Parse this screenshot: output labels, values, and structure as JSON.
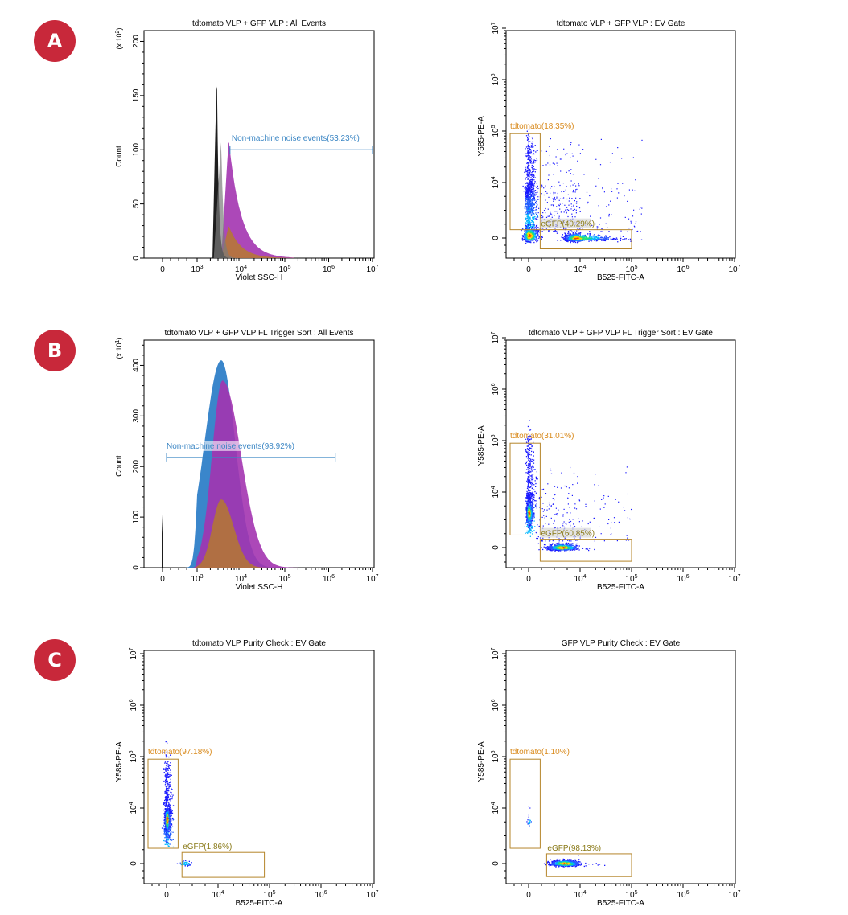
{
  "badges": [
    "A",
    "B",
    "C"
  ],
  "colors": {
    "badge": "#c8283a",
    "gate": "#b5852a",
    "histogram_marker": "#3b86c4",
    "tdtomato_label": "#d98a1c",
    "egfp_label": "#8a7a18"
  },
  "chart_data": [
    {
      "id": "A-left",
      "type": "histogram",
      "title": "tdtomato VLP + GFP VLP : All Events",
      "xlabel": "Violet SSC-H",
      "ylabel": "Count",
      "y_multiplier_label": "(x 10^2)",
      "x_scale": "biexponential",
      "x_ticks": [
        "0",
        "10^3",
        "10^4",
        "10^5",
        "10^6",
        "10^7"
      ],
      "y_ticks": [
        0,
        50,
        100,
        150,
        200
      ],
      "ylim": [
        0,
        210
      ],
      "marker": {
        "label": "Non-machine noise events(53.23%)",
        "start": "~5x10^3",
        "end": "10^7",
        "level": 100
      },
      "series": [
        {
          "color": "black",
          "peak_value": 176,
          "peak_x": "~3x10^3"
        },
        {
          "color": "purple",
          "peak_value": 110,
          "peak_x": "~5x10^3"
        },
        {
          "color": "orange",
          "peak_value": 30,
          "peak_x": "~5x10^3"
        }
      ]
    },
    {
      "id": "A-right",
      "type": "scatter",
      "title": "tdtomato VLP + GFP VLP : EV Gate",
      "xlabel": "B525-FITC-A",
      "ylabel": "Y585-PE-A",
      "x_ticks": [
        "0",
        "10^4",
        "10^5",
        "10^6",
        "10^7"
      ],
      "y_ticks": [
        "0",
        "10^4",
        "10^5",
        "10^6",
        "10^7"
      ],
      "gates": [
        {
          "name": "tdtomato",
          "label": "tdtomato(18.35%)"
        },
        {
          "name": "eGFP",
          "label": "eGFP(40.29%)"
        }
      ]
    },
    {
      "id": "B-left",
      "type": "histogram",
      "title": "tdtomato VLP + GFP VLP FL Trigger Sort : All Events",
      "xlabel": "Violet SSC-H",
      "ylabel": "Count",
      "y_multiplier_label": "(x 10^1)",
      "x_scale": "biexponential",
      "x_ticks": [
        "0",
        "10^3",
        "10^4",
        "10^5",
        "10^6",
        "10^7"
      ],
      "y_ticks": [
        0,
        100,
        200,
        300,
        400
      ],
      "ylim": [
        0,
        450
      ],
      "marker": {
        "label": "Non-machine noise events(98.92%)",
        "start": "~2x10^2",
        "end": "~1.5x10^6",
        "level": 218
      },
      "series": [
        {
          "color": "blue",
          "peak_value": 410,
          "peak_x": "~3x10^3"
        },
        {
          "color": "purple",
          "peak_value": 370,
          "peak_x": "~3x10^3"
        },
        {
          "color": "orange",
          "peak_value": 135,
          "peak_x": "~3x10^3"
        },
        {
          "color": "black",
          "peak_value": 105,
          "peak_x": "0"
        }
      ]
    },
    {
      "id": "B-right",
      "type": "scatter",
      "title": "tdtomato VLP + GFP VLP FL Trigger Sort : EV Gate",
      "xlabel": "B525-FITC-A",
      "ylabel": "Y585-PE-A",
      "x_ticks": [
        "0",
        "10^4",
        "10^5",
        "10^6",
        "10^7"
      ],
      "y_ticks": [
        "0",
        "10^4",
        "10^5",
        "10^6",
        "10^7"
      ],
      "gates": [
        {
          "name": "tdtomato",
          "label": "tdtomato(31.01%)"
        },
        {
          "name": "eGFP",
          "label": "eGFP(60.85%)"
        }
      ]
    },
    {
      "id": "C-left",
      "type": "scatter",
      "title": "tdtomato VLP Purity Check : EV Gate",
      "xlabel": "B525-FITC-A",
      "ylabel": "Y585-PE-A",
      "x_ticks": [
        "0",
        "10^4",
        "10^5",
        "10^6",
        "10^7"
      ],
      "y_ticks": [
        "0",
        "10^4",
        "10^5",
        "10^6",
        "10^7"
      ],
      "gates": [
        {
          "name": "tdtomato",
          "label": "tdtomato(97.18%)"
        },
        {
          "name": "eGFP",
          "label": "eGFP(1.86%)"
        }
      ]
    },
    {
      "id": "C-right",
      "type": "scatter",
      "title": "GFP VLP Purity Check : EV Gate",
      "xlabel": "B525-FITC-A",
      "ylabel": "Y585-PE-A",
      "x_ticks": [
        "0",
        "10^4",
        "10^5",
        "10^6",
        "10^7"
      ],
      "y_ticks": [
        "0",
        "10^4",
        "10^5",
        "10^6",
        "10^7"
      ],
      "gates": [
        {
          "name": "tdtomato",
          "label": "tdtomato(1.10%)"
        },
        {
          "name": "eGFP",
          "label": "eGFP(98.13%)"
        }
      ]
    }
  ]
}
